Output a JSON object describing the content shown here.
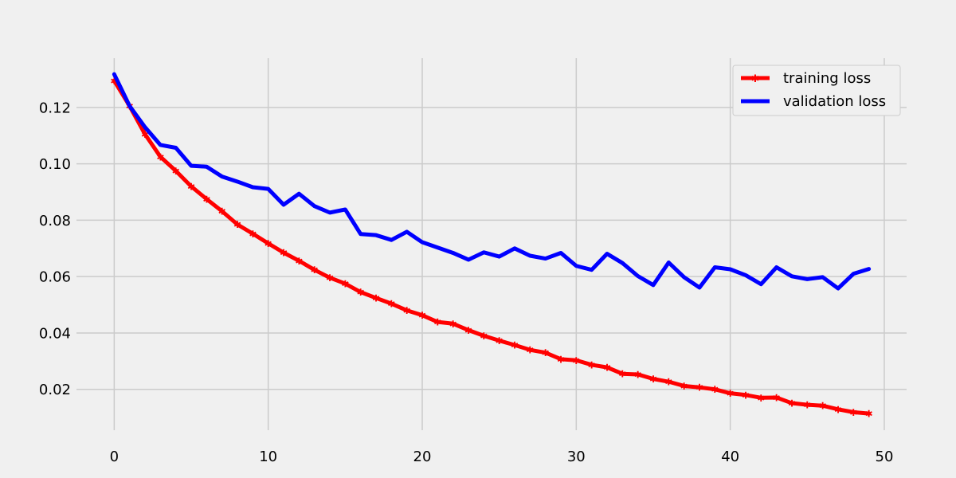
{
  "chart_data": {
    "type": "line",
    "title": "",
    "xlabel": "",
    "ylabel": "",
    "xlim": [
      -2.45,
      51.45
    ],
    "ylim": [
      0.0055,
      0.1375
    ],
    "x_ticks": [
      0,
      10,
      20,
      30,
      40,
      50
    ],
    "x_tick_labels": [
      "0",
      "10",
      "20",
      "30",
      "40",
      "50"
    ],
    "y_ticks": [
      0.02,
      0.04,
      0.06,
      0.08,
      0.1,
      0.12
    ],
    "y_tick_labels": [
      "0.02",
      "0.04",
      "0.06",
      "0.08",
      "0.10",
      "0.12"
    ],
    "grid": true,
    "legend_position": "top-right",
    "x": [
      0,
      1,
      2,
      3,
      4,
      5,
      6,
      7,
      8,
      9,
      10,
      11,
      12,
      13,
      14,
      15,
      16,
      17,
      18,
      19,
      20,
      21,
      22,
      23,
      24,
      25,
      26,
      27,
      28,
      29,
      30,
      31,
      32,
      33,
      34,
      35,
      36,
      37,
      38,
      39,
      40,
      41,
      42,
      43,
      44,
      45,
      46,
      47,
      48,
      49
    ],
    "series": [
      {
        "name": "training loss",
        "color": "#ff0000",
        "marker": "star",
        "values": [
          0.1295,
          0.1205,
          0.1105,
          0.1025,
          0.0975,
          0.092,
          0.0875,
          0.0832,
          0.0785,
          0.0752,
          0.0718,
          0.0685,
          0.0656,
          0.0624,
          0.0596,
          0.0575,
          0.0545,
          0.0524,
          0.0504,
          0.048,
          0.0463,
          0.0439,
          0.0433,
          0.041,
          0.039,
          0.0373,
          0.0357,
          0.034,
          0.033,
          0.0307,
          0.0303,
          0.0287,
          0.0278,
          0.0255,
          0.0253,
          0.0237,
          0.0227,
          0.0212,
          0.0207,
          0.02,
          0.0186,
          0.018,
          0.017,
          0.0171,
          0.0151,
          0.0145,
          0.0142,
          0.0129,
          0.0119,
          0.0114
        ]
      },
      {
        "name": "validation loss",
        "color": "#0000ff",
        "marker": "dot",
        "values": [
          0.1318,
          0.1205,
          0.113,
          0.1067,
          0.1057,
          0.0993,
          0.099,
          0.0955,
          0.0937,
          0.0917,
          0.0911,
          0.0855,
          0.0894,
          0.085,
          0.0827,
          0.0838,
          0.0751,
          0.0747,
          0.073,
          0.0759,
          0.0722,
          0.0703,
          0.0684,
          0.066,
          0.0686,
          0.0671,
          0.07,
          0.0674,
          0.0664,
          0.0684,
          0.0638,
          0.0624,
          0.0681,
          0.0648,
          0.0602,
          0.057,
          0.065,
          0.0598,
          0.0561,
          0.0633,
          0.0626,
          0.0605,
          0.0573,
          0.0633,
          0.0601,
          0.0591,
          0.0598,
          0.0558,
          0.061,
          0.0627
        ]
      }
    ]
  }
}
